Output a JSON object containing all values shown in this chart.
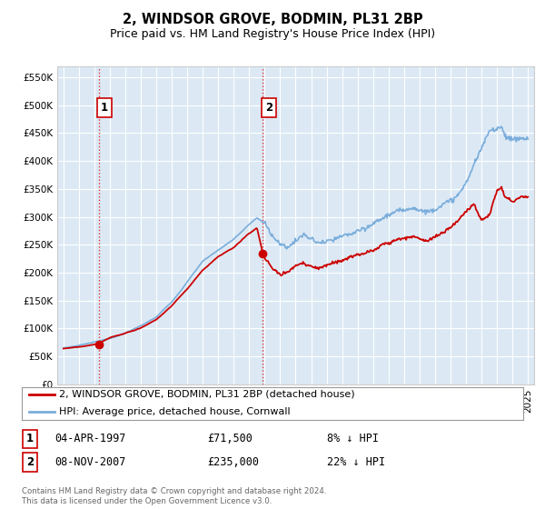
{
  "title": "2, WINDSOR GROVE, BODMIN, PL31 2BP",
  "subtitle": "Price paid vs. HM Land Registry's House Price Index (HPI)",
  "title_fontsize": 10.5,
  "subtitle_fontsize": 9,
  "plot_bg_color": "#dce9f5",
  "grid_color": "#ffffff",
  "ytick_values": [
    0,
    50000,
    100000,
    150000,
    200000,
    250000,
    300000,
    350000,
    400000,
    450000,
    500000,
    550000
  ],
  "ylim": [
    0,
    570000
  ],
  "sale1_date": 1997.27,
  "sale1_price": 71500,
  "sale1_label": "1",
  "sale2_date": 2007.87,
  "sale2_price": 235000,
  "sale2_label": "2",
  "red_line_color": "#cc0000",
  "blue_line_color": "#7aaddb",
  "dot_color": "#cc0000",
  "vline_color": "#dd3333",
  "legend_label1": "2, WINDSOR GROVE, BODMIN, PL31 2BP (detached house)",
  "legend_label2": "HPI: Average price, detached house, Cornwall",
  "table_row1": [
    "1",
    "04-APR-1997",
    "£71,500",
    "8% ↓ HPI"
  ],
  "table_row2": [
    "2",
    "08-NOV-2007",
    "£235,000",
    "22% ↓ HPI"
  ],
  "footer": "Contains HM Land Registry data © Crown copyright and database right 2024.\nThis data is licensed under the Open Government Licence v3.0.",
  "xmin": 1994.6,
  "xmax": 2025.4
}
